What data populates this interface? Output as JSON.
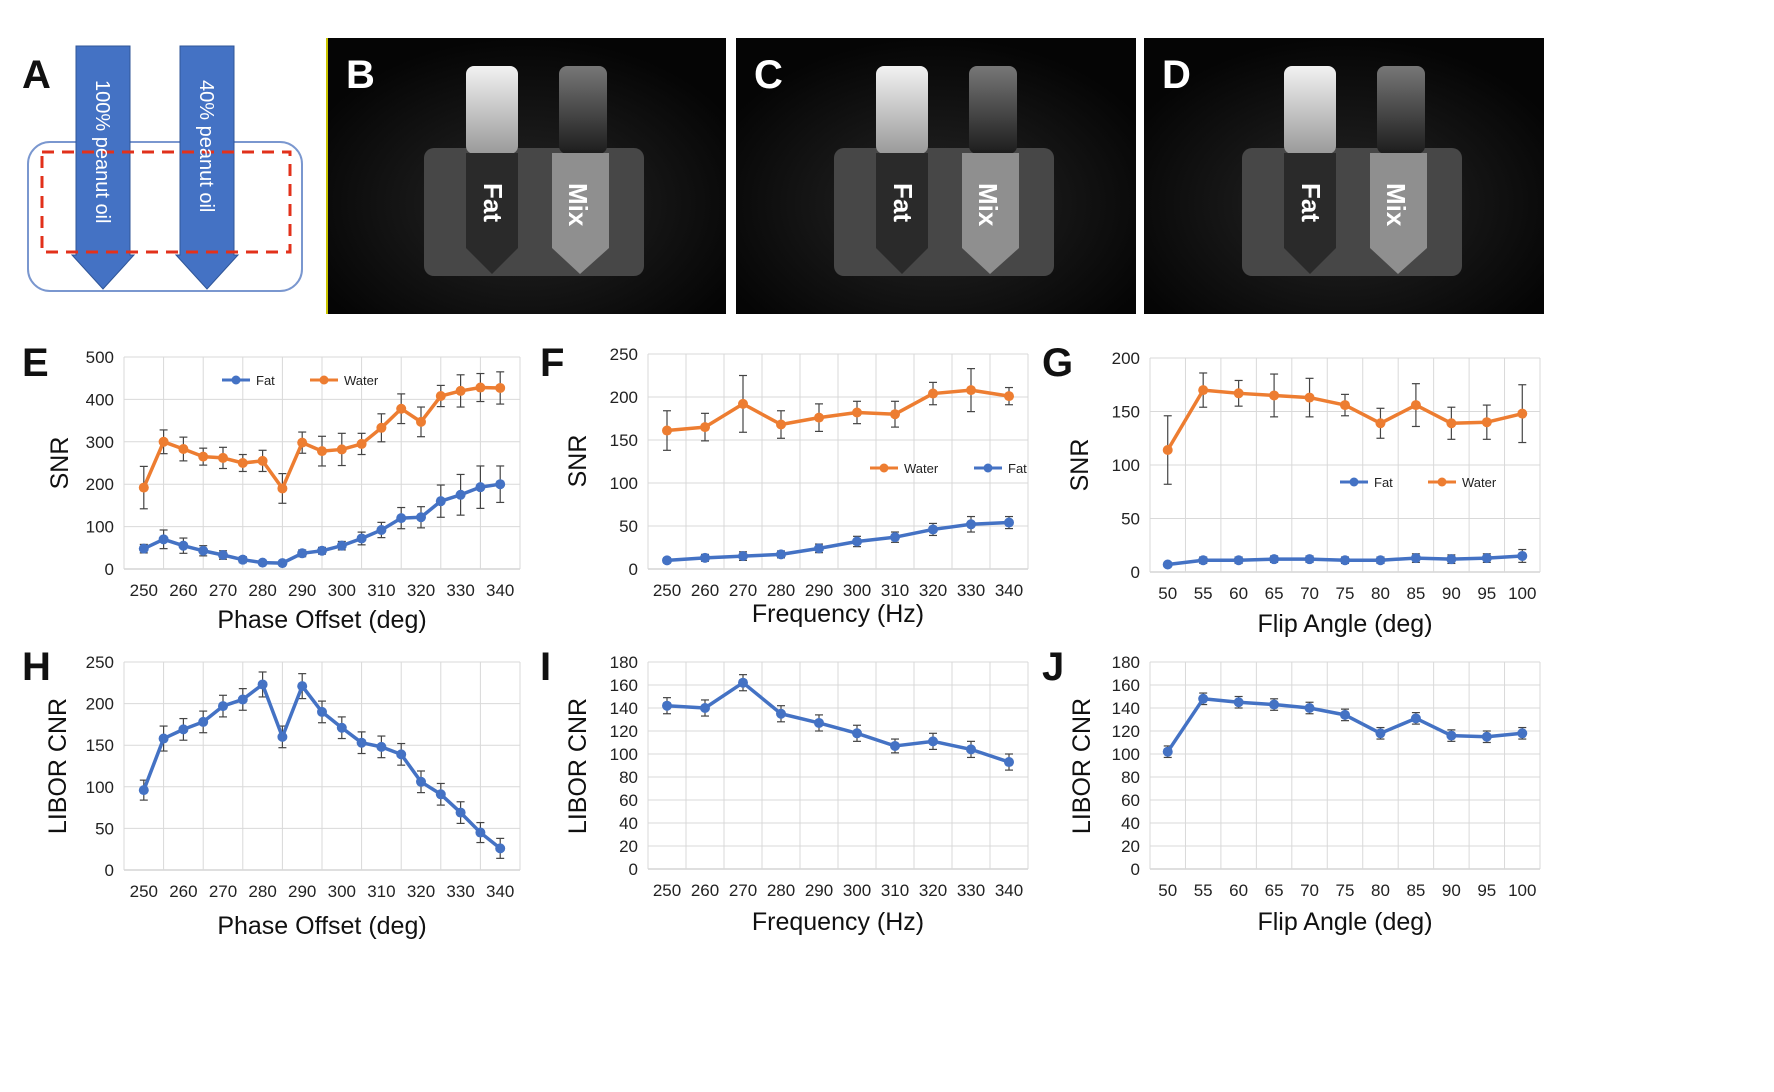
{
  "panel_a": {
    "letter": "A",
    "tube1_label": "100% peanut oil",
    "tube2_label": "40% peanut oil"
  },
  "mri_panels": [
    {
      "letter": "B",
      "fat_label": "Fat",
      "mix_label": "Mix"
    },
    {
      "letter": "C",
      "fat_label": "Fat",
      "mix_label": "Mix"
    },
    {
      "letter": "D",
      "fat_label": "Fat",
      "mix_label": "Mix"
    }
  ],
  "colors": {
    "fat": "#4472C4",
    "water": "#ED7D31"
  },
  "chart_data": [
    {
      "id": "E",
      "letter": "E",
      "type": "line",
      "xlabel": "Phase Offset (deg)",
      "ylabel": "SNR",
      "ylim": [
        0,
        500
      ],
      "ystep": 100,
      "xticks": [
        250,
        260,
        270,
        280,
        290,
        300,
        310,
        320,
        330,
        340
      ],
      "x": [
        250,
        255,
        260,
        265,
        270,
        275,
        280,
        285,
        290,
        295,
        300,
        305,
        310,
        315,
        320,
        325,
        330,
        335,
        340
      ],
      "legend": {
        "position": "top",
        "entries": [
          "Fat",
          "Water"
        ]
      },
      "series": [
        {
          "name": "Fat",
          "color": "#4472C4",
          "values": [
            48,
            70,
            55,
            43,
            33,
            22,
            15,
            14,
            37,
            43,
            55,
            72,
            92,
            120,
            122,
            160,
            175,
            193,
            200
          ],
          "errors": [
            10,
            22,
            18,
            12,
            10,
            7,
            4,
            5,
            8,
            8,
            10,
            15,
            18,
            25,
            25,
            38,
            48,
            50,
            43
          ]
        },
        {
          "name": "Water",
          "color": "#ED7D31",
          "values": [
            192,
            300,
            283,
            265,
            262,
            250,
            255,
            190,
            298,
            278,
            282,
            295,
            333,
            378,
            347,
            408,
            420,
            428,
            427
          ],
          "errors": [
            50,
            28,
            28,
            20,
            25,
            20,
            25,
            35,
            25,
            35,
            38,
            25,
            33,
            35,
            35,
            25,
            38,
            33,
            38
          ]
        }
      ]
    },
    {
      "id": "F",
      "letter": "F",
      "type": "line",
      "xlabel": "Frequency (Hz)",
      "ylabel": "SNR",
      "ylim": [
        0,
        250
      ],
      "ystep": 50,
      "xticks": [
        250,
        260,
        270,
        280,
        290,
        300,
        310,
        320,
        330,
        340
      ],
      "x": [
        250,
        260,
        270,
        280,
        290,
        300,
        310,
        320,
        330,
        340
      ],
      "legend": {
        "position": "right",
        "entries": [
          "Water",
          "Fat"
        ]
      },
      "series": [
        {
          "name": "Water",
          "color": "#ED7D31",
          "values": [
            161,
            165,
            192,
            168,
            176,
            182,
            180,
            204,
            208,
            201
          ],
          "errors": [
            23,
            16,
            33,
            16,
            16,
            13,
            15,
            13,
            25,
            10
          ]
        },
        {
          "name": "Fat",
          "color": "#4472C4",
          "values": [
            10,
            13,
            15,
            17,
            24,
            32,
            37,
            46,
            52,
            54
          ],
          "errors": [
            3,
            4,
            5,
            4,
            5,
            6,
            6,
            7,
            9,
            7
          ]
        }
      ]
    },
    {
      "id": "G",
      "letter": "G",
      "type": "line",
      "xlabel": "Flip Angle (deg)",
      "ylabel": "SNR",
      "ylim": [
        0,
        200
      ],
      "ystep": 50,
      "xticks": [
        50,
        55,
        60,
        65,
        70,
        75,
        80,
        85,
        90,
        95,
        100
      ],
      "x": [
        50,
        55,
        60,
        65,
        70,
        75,
        80,
        85,
        90,
        95,
        100
      ],
      "legend": {
        "position": "right",
        "entries": [
          "Fat",
          "Water"
        ]
      },
      "series": [
        {
          "name": "Fat",
          "color": "#4472C4",
          "values": [
            7,
            11,
            11,
            12,
            12,
            11,
            11,
            13,
            12,
            13,
            15
          ],
          "errors": [
            2,
            3,
            3,
            3,
            3,
            3,
            3,
            4,
            4,
            4,
            6
          ]
        },
        {
          "name": "Water",
          "color": "#ED7D31",
          "values": [
            114,
            170,
            167,
            165,
            163,
            156,
            139,
            156,
            139,
            140,
            148
          ],
          "errors": [
            32,
            16,
            12,
            20,
            18,
            10,
            14,
            20,
            15,
            16,
            27
          ]
        }
      ]
    },
    {
      "id": "H",
      "letter": "H",
      "type": "line",
      "xlabel": "Phase Offset (deg)",
      "ylabel": "LIBOR CNR",
      "ylim": [
        0,
        250
      ],
      "ystep": 50,
      "xticks": [
        250,
        260,
        270,
        280,
        290,
        300,
        310,
        320,
        330,
        340
      ],
      "x": [
        250,
        255,
        260,
        265,
        270,
        275,
        280,
        285,
        290,
        295,
        300,
        305,
        310,
        315,
        320,
        325,
        330,
        335,
        340
      ],
      "series": [
        {
          "name": "CNR",
          "color": "#4472C4",
          "values": [
            96,
            158,
            169,
            178,
            197,
            205,
            223,
            160,
            221,
            190,
            171,
            153,
            148,
            139,
            106,
            91,
            69,
            45,
            26
          ],
          "errors": [
            12,
            15,
            13,
            13,
            13,
            13,
            15,
            13,
            15,
            13,
            13,
            13,
            13,
            13,
            13,
            13,
            13,
            12,
            12
          ]
        }
      ]
    },
    {
      "id": "I",
      "letter": "I",
      "type": "line",
      "xlabel": "Frequency (Hz)",
      "ylabel": "LIBOR CNR",
      "ylim": [
        0,
        180
      ],
      "ystep": 20,
      "xticks": [
        250,
        260,
        270,
        280,
        290,
        300,
        310,
        320,
        330,
        340
      ],
      "x": [
        250,
        260,
        270,
        280,
        290,
        300,
        310,
        320,
        330,
        340
      ],
      "series": [
        {
          "name": "CNR",
          "color": "#4472C4",
          "values": [
            142,
            140,
            162,
            135,
            127,
            118,
            107,
            111,
            104,
            93
          ],
          "errors": [
            7,
            7,
            7,
            7,
            7,
            7,
            6,
            7,
            7,
            7
          ]
        }
      ]
    },
    {
      "id": "J",
      "letter": "J",
      "type": "line",
      "xlabel": "Flip Angle (deg)",
      "ylabel": "LIBOR CNR",
      "ylim": [
        0,
        180
      ],
      "ystep": 20,
      "xticks": [
        50,
        55,
        60,
        65,
        70,
        75,
        80,
        85,
        90,
        95,
        100
      ],
      "x": [
        50,
        55,
        60,
        65,
        70,
        75,
        80,
        85,
        90,
        95,
        100
      ],
      "series": [
        {
          "name": "CNR",
          "color": "#4472C4",
          "values": [
            102,
            148,
            145,
            143,
            140,
            134,
            118,
            131,
            116,
            115,
            118
          ],
          "errors": [
            5,
            5,
            5,
            5,
            5,
            5,
            5,
            5,
            5,
            5,
            5
          ]
        }
      ]
    }
  ]
}
